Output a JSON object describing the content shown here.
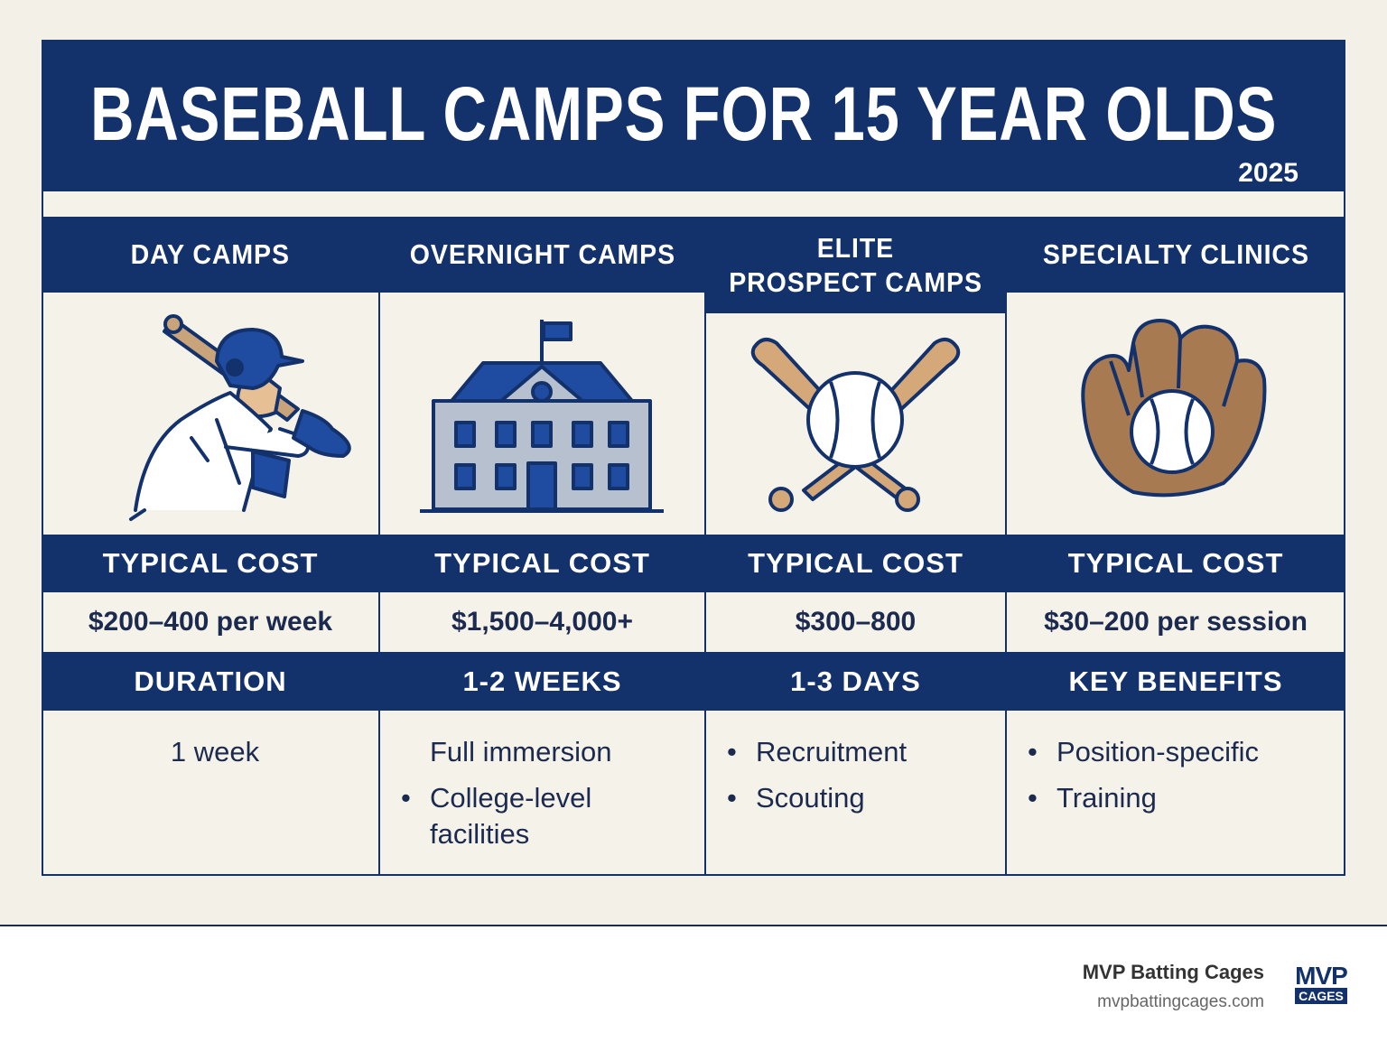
{
  "header": {
    "title": "BASEBALL CAMPS FOR 15 YEAR OLDS",
    "year": "2025"
  },
  "columns": [
    {
      "heading_lines": [
        "DAY CAMPS"
      ],
      "cost_label": "TYPICAL COST",
      "cost": "$200–400 per week",
      "detail_heading": "DURATION",
      "details": [
        {
          "text": "1 week",
          "bullet": false
        }
      ]
    },
    {
      "heading_lines": [
        "OVERNIGHT CAMPS"
      ],
      "cost_label": "TYPICAL COST",
      "cost": "$1,500–4,000+",
      "detail_heading": "1-2 WEEKS",
      "details": [
        {
          "text": "Full immersion",
          "bullet": false
        },
        {
          "text": "College-level facilities",
          "bullet": true
        }
      ]
    },
    {
      "heading_lines": [
        "ELITE",
        "PROSPECT CAMPS"
      ],
      "cost_label": "TYPICAL COST",
      "cost": "$300–800",
      "detail_heading": "1-3 DAYS",
      "details": [
        {
          "text": "Recruitment",
          "bullet": true
        },
        {
          "text": "Scouting",
          "bullet": true
        }
      ]
    },
    {
      "heading_lines": [
        "SPECIALTY CLINICS"
      ],
      "cost_label": "TYPICAL COST",
      "cost": "$30–200 per session",
      "detail_heading": "KEY BENEFITS",
      "details": [
        {
          "text": "Position-specific",
          "bullet": true
        },
        {
          "text": "Training",
          "bullet": true
        }
      ]
    }
  ],
  "footer": {
    "brand": "MVP Batting Cages",
    "url": "mvpbattingcages.com",
    "logo_top": "MVP",
    "logo_bottom": "CAGES"
  }
}
